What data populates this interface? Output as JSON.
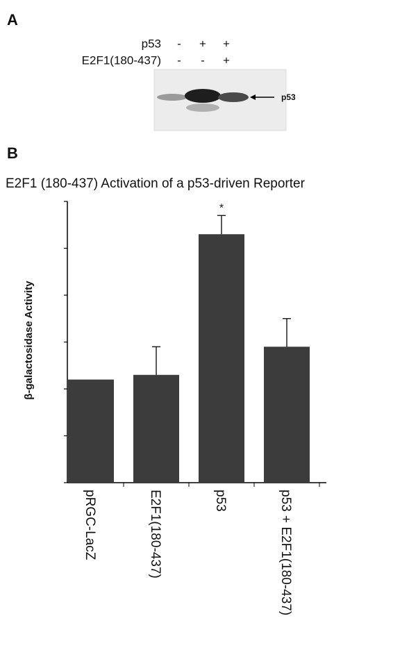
{
  "panel_a": {
    "label": "A",
    "rows": [
      {
        "label": "p53",
        "signs": [
          "-",
          "+",
          "+"
        ]
      },
      {
        "label": "E2F1(180-437)",
        "signs": [
          "-",
          "-",
          "+"
        ]
      }
    ],
    "blot_label": "p53"
  },
  "chart_data": {
    "type": "bar",
    "panel_label": "B",
    "title": "E2F1 (180-437) Activation of a p53-driven Reporter",
    "y_label": "β-galactosidase Activity",
    "categories": [
      "pRGC-LacZ",
      "E2F1(180-437)",
      "p53",
      "p53 + E2F1(180-437)"
    ],
    "values": [
      2.2,
      2.3,
      5.3,
      2.9
    ],
    "errors": [
      null,
      0.6,
      0.4,
      0.6
    ],
    "color": "#3c3c3c",
    "annotations": [
      {
        "text": "*",
        "category": "p53"
      }
    ],
    "ylim": [
      0,
      6
    ],
    "yticks": [
      0,
      1,
      2,
      3,
      4,
      5,
      6
    ]
  }
}
